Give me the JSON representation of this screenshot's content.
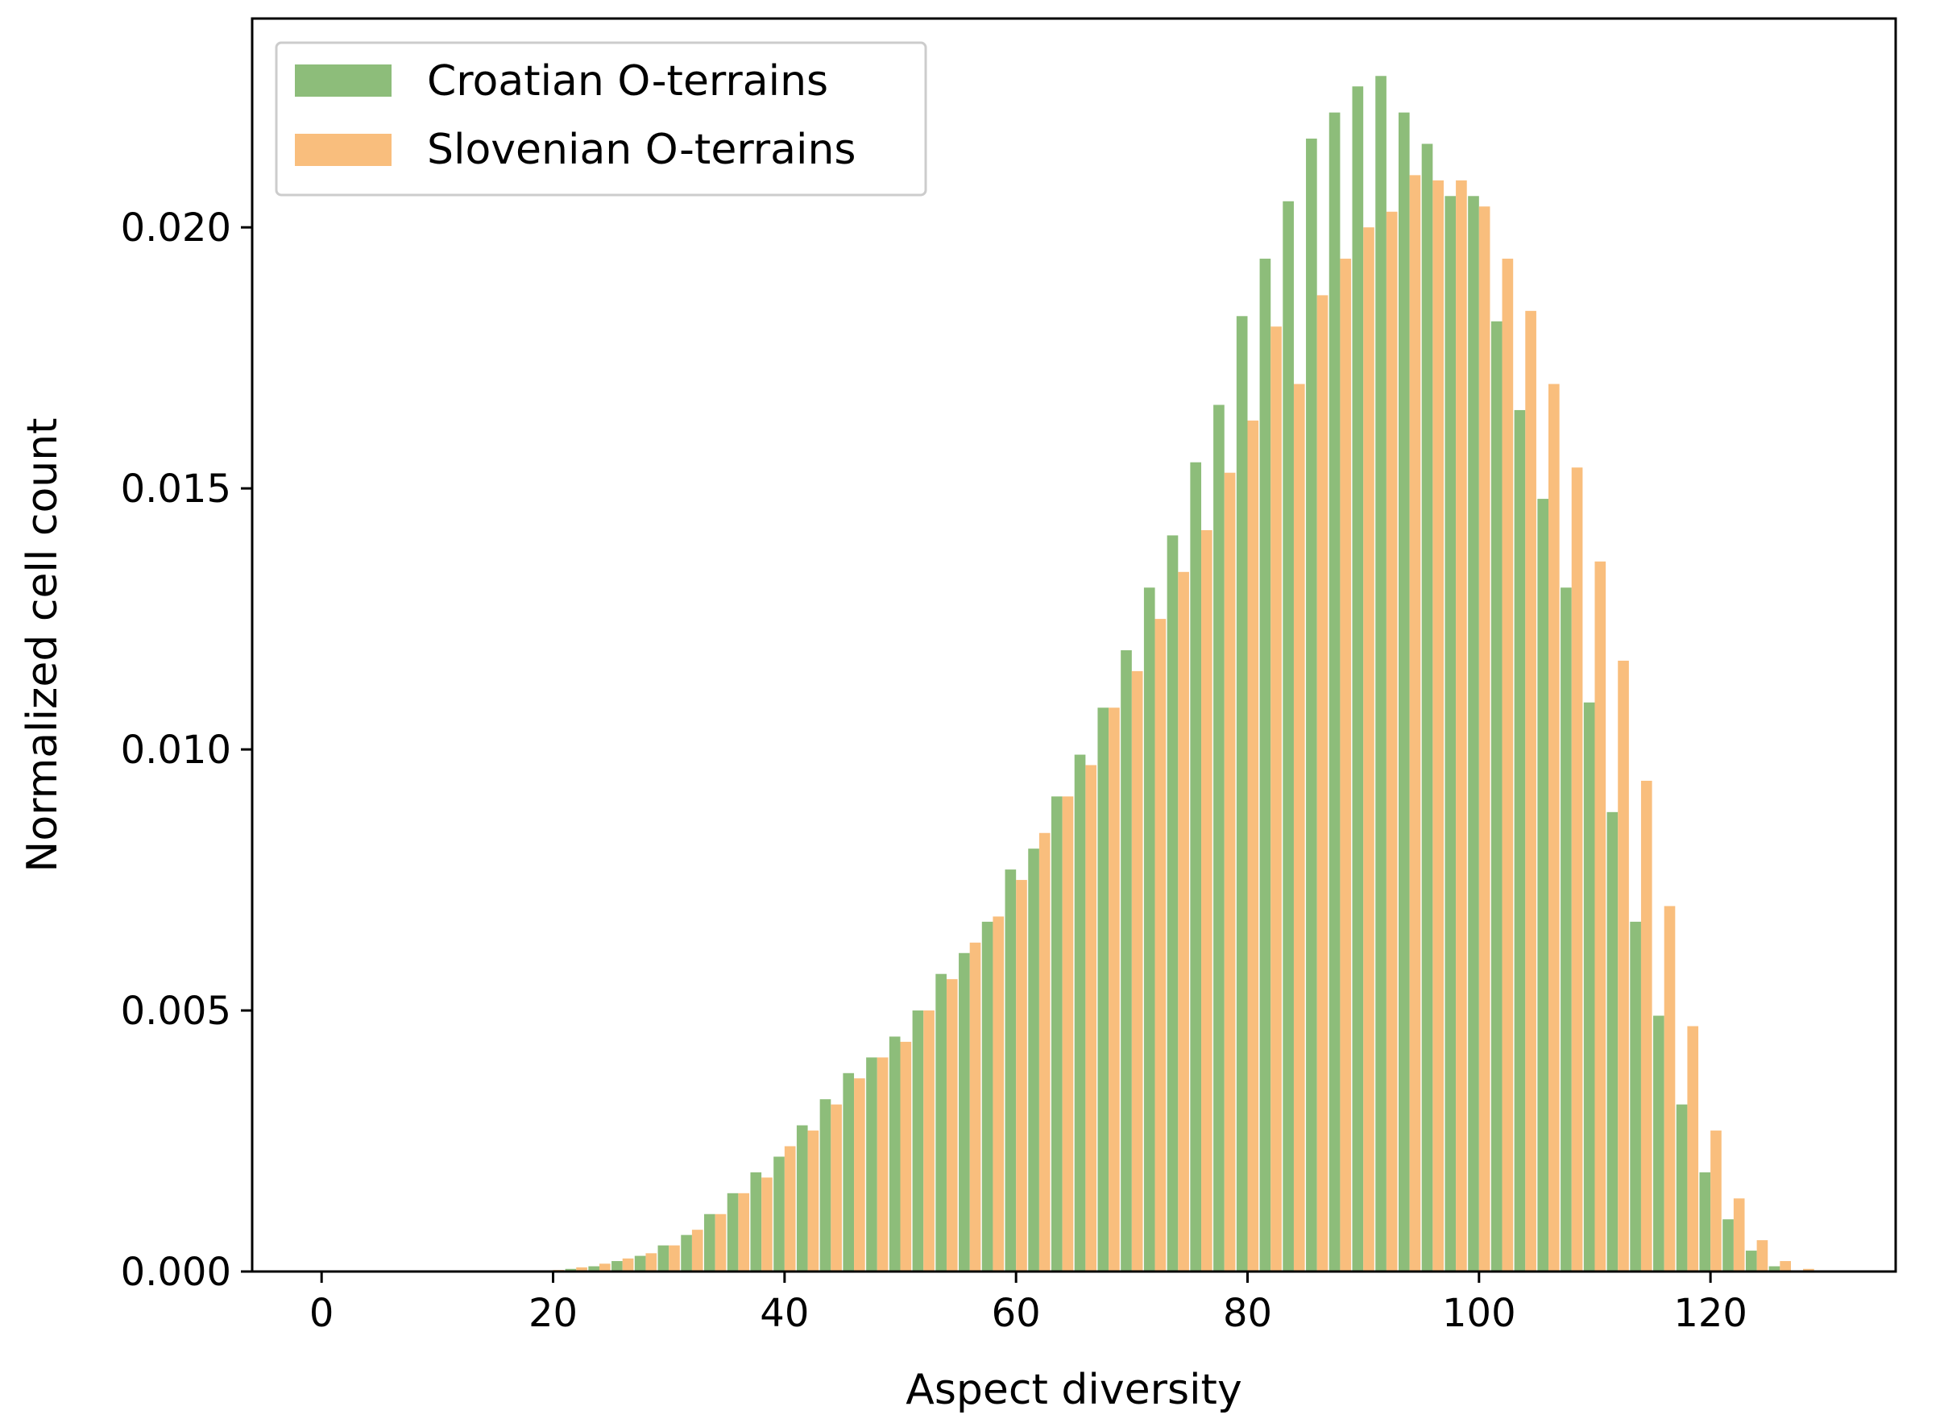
{
  "chart_data": {
    "type": "bar",
    "xlabel": "Aspect diversity",
    "ylabel": "Normalized cell count",
    "xlim": [
      -6,
      136
    ],
    "ylim": [
      0,
      0.024
    ],
    "xticks": [
      0,
      20,
      40,
      60,
      80,
      100,
      120
    ],
    "xtick_labels": [
      "0",
      "20",
      "40",
      "60",
      "80",
      "100",
      "120"
    ],
    "yticks": [
      0,
      0.005,
      0.01,
      0.015,
      0.02
    ],
    "ytick_labels": [
      "0.000",
      "0.005",
      "0.010",
      "0.015",
      "0.020"
    ],
    "grid": false,
    "legend": {
      "position": "top-left"
    },
    "x": [
      20,
      22,
      24,
      26,
      28,
      30,
      32,
      34,
      36,
      38,
      40,
      42,
      44,
      46,
      48,
      50,
      52,
      54,
      56,
      58,
      60,
      62,
      64,
      66,
      68,
      70,
      72,
      74,
      76,
      78,
      80,
      82,
      84,
      86,
      88,
      90,
      92,
      94,
      96,
      98,
      100,
      102,
      104,
      106,
      108,
      110,
      112,
      114,
      116,
      118,
      120,
      122,
      124,
      126,
      128
    ],
    "series": [
      {
        "name": "Croatian O-terrains",
        "color": "#8dbd7a",
        "values": [
          2e-05,
          5e-05,
          0.0001,
          0.0002,
          0.0003,
          0.0005,
          0.0007,
          0.0011,
          0.0015,
          0.0019,
          0.0022,
          0.0028,
          0.0033,
          0.0038,
          0.0041,
          0.0045,
          0.005,
          0.0057,
          0.0061,
          0.0067,
          0.0077,
          0.0081,
          0.0091,
          0.0099,
          0.0108,
          0.0119,
          0.0131,
          0.0141,
          0.0155,
          0.0166,
          0.0183,
          0.0194,
          0.0205,
          0.0217,
          0.0222,
          0.0227,
          0.0229,
          0.0222,
          0.0216,
          0.0206,
          0.0206,
          0.0182,
          0.0165,
          0.0148,
          0.0131,
          0.0109,
          0.0088,
          0.0067,
          0.0049,
          0.0032,
          0.0019,
          0.001,
          0.0004,
          0.0001,
          2e-05
        ]
      },
      {
        "name": "Slovenian O-terrains",
        "color": "#f9be7d",
        "values": [
          3e-05,
          8e-05,
          0.00015,
          0.00025,
          0.00035,
          0.0005,
          0.0008,
          0.0011,
          0.0015,
          0.0018,
          0.0024,
          0.0027,
          0.0032,
          0.0037,
          0.0041,
          0.0044,
          0.005,
          0.0056,
          0.0063,
          0.0068,
          0.0075,
          0.0084,
          0.0091,
          0.0097,
          0.0108,
          0.0115,
          0.0125,
          0.0134,
          0.0142,
          0.0153,
          0.0163,
          0.0181,
          0.017,
          0.0187,
          0.0194,
          0.02,
          0.0203,
          0.021,
          0.0209,
          0.0209,
          0.0204,
          0.0194,
          0.0184,
          0.017,
          0.0154,
          0.0136,
          0.0117,
          0.0094,
          0.007,
          0.0047,
          0.0027,
          0.0014,
          0.0006,
          0.0002,
          5e-05
        ]
      }
    ]
  }
}
